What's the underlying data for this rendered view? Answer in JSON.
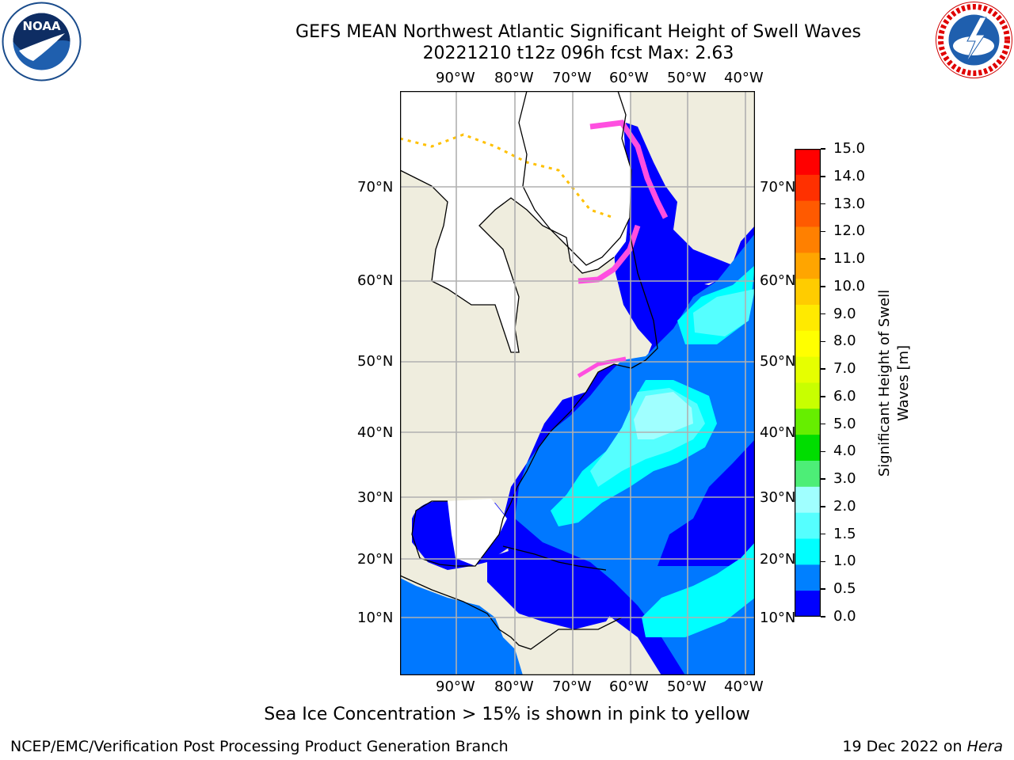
{
  "title_line1": "GEFS MEAN Northwest Atlantic Significant Height of Swell Waves",
  "title_line2": "20221210 t12z 096h fcst   Max: 2.63",
  "map": {
    "lon_labels": [
      "90°W",
      "80°W",
      "70°W",
      "60°W",
      "50°W",
      "40°W"
    ],
    "lat_labels": [
      "70°N",
      "60°N",
      "50°N",
      "40°N",
      "30°N",
      "20°N",
      "10°N"
    ],
    "colors": {
      "land": "#efedde",
      "ice_white": "#ffffff",
      "ice_pink": "#ff4fe0",
      "ice_orange": "#ffc000",
      "gridline": "#b0b0b0",
      "coast": "#000000"
    }
  },
  "colorbar": {
    "label_line1": "Significant Height of Swell",
    "label_line2": "Waves [m]",
    "ticks": [
      "15.0",
      "14.0",
      "13.0",
      "12.0",
      "11.0",
      "10.0",
      "9.0",
      "8.0",
      "7.0",
      "6.0",
      "5.0",
      "4.0",
      "3.0",
      "2.0",
      "1.5",
      "1.0",
      "0.5",
      "0.0"
    ],
    "colors_top_to_bottom": [
      "#ff0000",
      "#ff3000",
      "#ff5a00",
      "#ff8000",
      "#ffa500",
      "#ffcc00",
      "#ffea00",
      "#ffff00",
      "#e6ff00",
      "#c8ff00",
      "#66ee00",
      "#00dd00",
      "#4dee77",
      "#a0ffff",
      "#55ffff",
      "#00ffff",
      "#0080ff",
      "#0000ff"
    ]
  },
  "footnote": "Sea Ice Concentration > 15% is shown in pink to yellow",
  "credit_left": "NCEP/EMC/Verification Post Processing Product Generation Branch",
  "credit_date": "19 Dec 2022 on",
  "credit_host": "Hera",
  "logos": {
    "noaa_text": "NOAA",
    "nws_text": "NATIONAL WEATHER SERVICE"
  }
}
